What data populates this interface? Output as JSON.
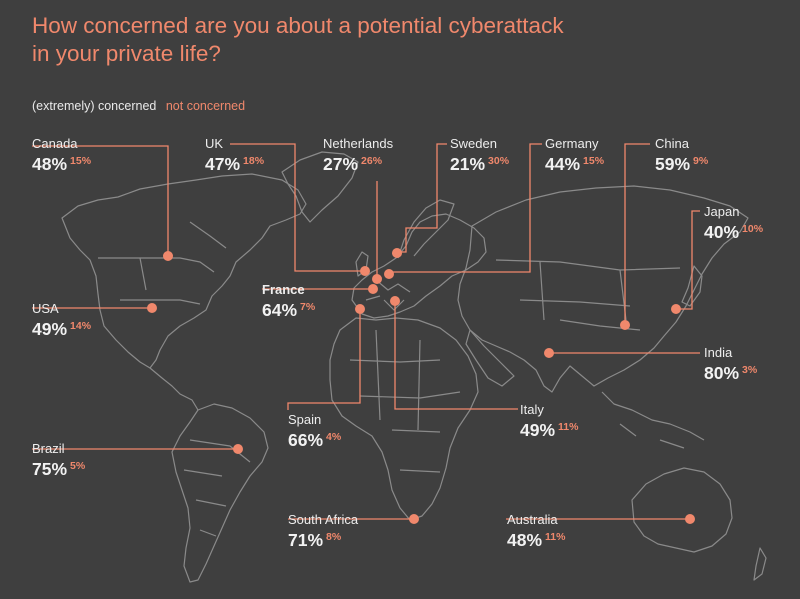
{
  "title_line1": "How concerned are you about a potential cyberattack",
  "title_line2": "in your private life?",
  "legend": {
    "concerned": "(extremely) concerned",
    "not_concerned": "not concerned"
  },
  "colors": {
    "background": "#3f3f3f",
    "accent": "#f0886c",
    "map": "#8a8a8a",
    "text": "#f2f2f2"
  },
  "countries": [
    {
      "id": "canada",
      "name": "Canada",
      "concerned": "48%",
      "not_concerned": "15%"
    },
    {
      "id": "uk",
      "name": "UK",
      "concerned": "47%",
      "not_concerned": "18%"
    },
    {
      "id": "netherlands",
      "name": "Netherlands",
      "concerned": "27%",
      "not_concerned": "26%"
    },
    {
      "id": "sweden",
      "name": "Sweden",
      "concerned": "21%",
      "not_concerned": "30%"
    },
    {
      "id": "germany",
      "name": "Germany",
      "concerned": "44%",
      "not_concerned": "15%"
    },
    {
      "id": "china",
      "name": "China",
      "concerned": "59%",
      "not_concerned": "9%"
    },
    {
      "id": "japan",
      "name": "Japan",
      "concerned": "40%",
      "not_concerned": "10%"
    },
    {
      "id": "france",
      "name": "France",
      "concerned": "64%",
      "not_concerned": "7%"
    },
    {
      "id": "usa",
      "name": "USA",
      "concerned": "49%",
      "not_concerned": "14%"
    },
    {
      "id": "india",
      "name": "India",
      "concerned": "80%",
      "not_concerned": "3%"
    },
    {
      "id": "spain",
      "name": "Spain",
      "concerned": "66%",
      "not_concerned": "4%"
    },
    {
      "id": "italy",
      "name": "Italy",
      "concerned": "49%",
      "not_concerned": "11%"
    },
    {
      "id": "brazil",
      "name": "Brazil",
      "concerned": "75%",
      "not_concerned": "5%"
    },
    {
      "id": "south_africa",
      "name": "South Africa",
      "concerned": "71%",
      "not_concerned": "8%"
    },
    {
      "id": "australia",
      "name": "Australia",
      "concerned": "48%",
      "not_concerned": "11%"
    }
  ]
}
